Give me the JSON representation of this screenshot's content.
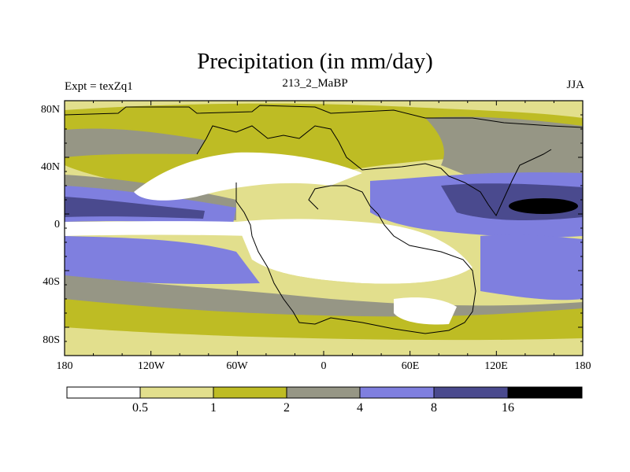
{
  "title": "Precipitation (in mm/day)",
  "left_label": "Expt = texZq1",
  "center_label": "213_2_MaBP",
  "right_label": "JJA",
  "colors": {
    "white": "#ffffff",
    "pale": "#e2df8d",
    "olive": "#bebc24",
    "grey": "#969685",
    "blue": "#7f7fdf",
    "navy": "#4a4a8e",
    "black": "#000000"
  },
  "map": {
    "y_ticks": [
      "80N",
      "40N",
      "0",
      "40S",
      "80S"
    ],
    "x_ticks": [
      "180",
      "120W",
      "60W",
      "0",
      "60E",
      "120E",
      "180"
    ]
  },
  "colorbar": {
    "levels": [
      "0.5",
      "1",
      "2",
      "4",
      "8",
      "16"
    ]
  }
}
